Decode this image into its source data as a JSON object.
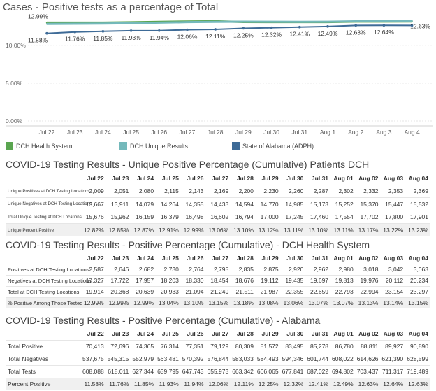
{
  "chart_title": "Cases - Positive tests as a percentage of Total",
  "chart_data": {
    "type": "line",
    "title": "Cases - Positive tests as a percentage of Total",
    "categories": [
      "Jul 22",
      "Jul 23",
      "Jul 24",
      "Jul 25",
      "Jul 26",
      "Jul 27",
      "Jul 28",
      "Jul 29",
      "Jul 30",
      "Jul 31",
      "Aug 1",
      "Aug 2",
      "Aug 3",
      "Aug 4"
    ],
    "y_ticks": [
      "0.00%",
      "5.00%",
      "10.00%"
    ],
    "ylim": [
      0,
      13.4
    ],
    "grid": true,
    "legend_position": "bottom",
    "series": [
      {
        "name": "DCH Health System",
        "color": "#5aa550",
        "values": [
          12.99,
          12.99,
          12.99,
          13.04,
          13.1,
          13.15,
          13.18,
          13.08,
          13.06,
          13.07,
          13.07,
          13.13,
          13.14,
          13.15
        ],
        "point_labels": [
          "12.99%",
          "",
          "",
          "",
          "",
          "",
          "",
          "",
          "",
          "",
          "",
          "",
          "",
          ""
        ]
      },
      {
        "name": "DCH Unique Results",
        "color": "#74b9bb",
        "values": [
          12.82,
          12.85,
          12.87,
          12.91,
          12.99,
          13.06,
          13.1,
          13.12,
          13.11,
          13.1,
          13.11,
          13.17,
          13.22,
          13.23
        ],
        "point_labels": [
          "",
          "",
          "",
          "",
          "",
          "",
          "",
          "",
          "",
          "",
          "",
          "",
          "",
          ""
        ]
      },
      {
        "name": "State of Alabama (ADPH)",
        "color": "#3e6b97",
        "values": [
          11.58,
          11.76,
          11.85,
          11.93,
          11.94,
          12.06,
          12.11,
          12.25,
          12.32,
          12.41,
          12.49,
          12.63,
          12.64,
          12.63
        ],
        "point_labels": [
          "11.58%",
          "11.76%",
          "11.85%",
          "11.93%",
          "11.94%",
          "12.06%",
          "12.11%",
          "12.25%",
          "12.32%",
          "12.41%",
          "12.49%",
          "12.63%",
          "12.64%",
          "12.63%"
        ]
      }
    ]
  },
  "tables": [
    {
      "title": "COVID-19 Testing Results - Unique Positive Percentage (Cumulative) Patients DCH",
      "headers": [
        "Jul 22",
        "Jul 23",
        "Jul 24",
        "Jul 25",
        "Jul 26",
        "Jul 27",
        "Jul 28",
        "Jul 29",
        "Jul 30",
        "Jul 31",
        "Aug 01",
        "Aug 02",
        "Aug 03",
        "Aug 04"
      ],
      "rows": [
        {
          "label": "Unique Positives at DCH Testing Locations",
          "values": [
            "2,009",
            "2,051",
            "2,080",
            "2,115",
            "2,143",
            "2,169",
            "2,200",
            "2,230",
            "2,260",
            "2,287",
            "2,302",
            "2,332",
            "2,353",
            "2,369"
          ]
        },
        {
          "label": "Unique Negatives at DCH Testing Locations",
          "values": [
            "13,667",
            "13,911",
            "14,079",
            "14,264",
            "14,355",
            "14,433",
            "14,594",
            "14,770",
            "14,985",
            "15,173",
            "15,252",
            "15,370",
            "15,447",
            "15,532"
          ]
        },
        {
          "label": "Total Unique Testing at DCH Locations",
          "values": [
            "15,676",
            "15,962",
            "16,159",
            "16,379",
            "16,498",
            "16,602",
            "16,794",
            "17,000",
            "17,245",
            "17,460",
            "17,554",
            "17,702",
            "17,800",
            "17,901"
          ]
        },
        {
          "label": "Unique Percent Positive",
          "values": [
            "12.82%",
            "12.85%",
            "12.87%",
            "12.91%",
            "12.99%",
            "13.06%",
            "13.10%",
            "13.12%",
            "13.11%",
            "13.10%",
            "13.11%",
            "13.17%",
            "13.22%",
            "13.23%"
          ]
        }
      ]
    },
    {
      "title": "COVID-19 Testing Results - Positive Percentage (Cumulative) - DCH Health System",
      "headers": [
        "Jul 22",
        "Jul 23",
        "Jul 24",
        "Jul 25",
        "Jul 26",
        "Jul 27",
        "Jul 28",
        "Jul 29",
        "Jul 30",
        "Jul 31",
        "Aug 01",
        "Aug 02",
        "Aug 03",
        "Aug 04"
      ],
      "rows": [
        {
          "label": "Positives at DCH Testing Locations",
          "values": [
            "2,587",
            "2,646",
            "2,682",
            "2,730",
            "2,764",
            "2,795",
            "2,835",
            "2,875",
            "2,920",
            "2,962",
            "2,980",
            "3,018",
            "3,042",
            "3,063"
          ]
        },
        {
          "label": "Negatives at DCH Testing Locations",
          "values": [
            "17,327",
            "17,722",
            "17,957",
            "18,203",
            "18,330",
            "18,454",
            "18,676",
            "19,112",
            "19,435",
            "19,697",
            "19,813",
            "19,976",
            "20,112",
            "20,234"
          ]
        },
        {
          "label": "Total at DCH Testing Locations",
          "values": [
            "19,914",
            "20,368",
            "20,639",
            "20,933",
            "21,094",
            "21,249",
            "21,511",
            "21,987",
            "22,355",
            "22,659",
            "22,793",
            "22,994",
            "23,154",
            "23,297"
          ]
        },
        {
          "label": "% Positive Among Those Tested",
          "values": [
            "12.99%",
            "12.99%",
            "12.99%",
            "13.04%",
            "13.10%",
            "13.15%",
            "13.18%",
            "13.08%",
            "13.06%",
            "13.07%",
            "13.07%",
            "13.13%",
            "13.14%",
            "13.15%"
          ]
        }
      ]
    },
    {
      "title": "COVID-19 Testing Results - Positive Percentage (Cumulative) - Alabama",
      "headers": [
        "Jul 22",
        "Jul 23",
        "Jul 24",
        "Jul 25",
        "Jul 26",
        "Jul 27",
        "Jul 28",
        "Jul 29",
        "Jul 30",
        "Jul 31",
        "Aug 01",
        "Aug 02",
        "Aug 03",
        "Aug 04"
      ],
      "rows": [
        {
          "label": "Total Positive",
          "values": [
            "70,413",
            "72,696",
            "74,365",
            "76,314",
            "77,351",
            "79,129",
            "80,309",
            "81,572",
            "83,495",
            "85,278",
            "86,780",
            "88,811",
            "89,927",
            "90,890"
          ]
        },
        {
          "label": "Total Negatives",
          "values": [
            "537,675",
            "545,315",
            "552,979",
            "563,481",
            "570,392",
            "576,844",
            "583,033",
            "584,493",
            "594,346",
            "601,744",
            "608,022",
            "614,626",
            "621,390",
            "628,599"
          ]
        },
        {
          "label": "Total Tests",
          "values": [
            "608,088",
            "618,011",
            "627,344",
            "639,795",
            "647,743",
            "655,973",
            "663,342",
            "666,065",
            "677,841",
            "687,022",
            "694,802",
            "703,437",
            "711,317",
            "719,489"
          ]
        },
        {
          "label": "Percent Positive",
          "values": [
            "11.58%",
            "11.76%",
            "11.85%",
            "11.93%",
            "11.94%",
            "12.06%",
            "12.11%",
            "12.25%",
            "12.32%",
            "12.41%",
            "12.49%",
            "12.63%",
            "12.64%",
            "12.63%"
          ]
        }
      ]
    }
  ]
}
